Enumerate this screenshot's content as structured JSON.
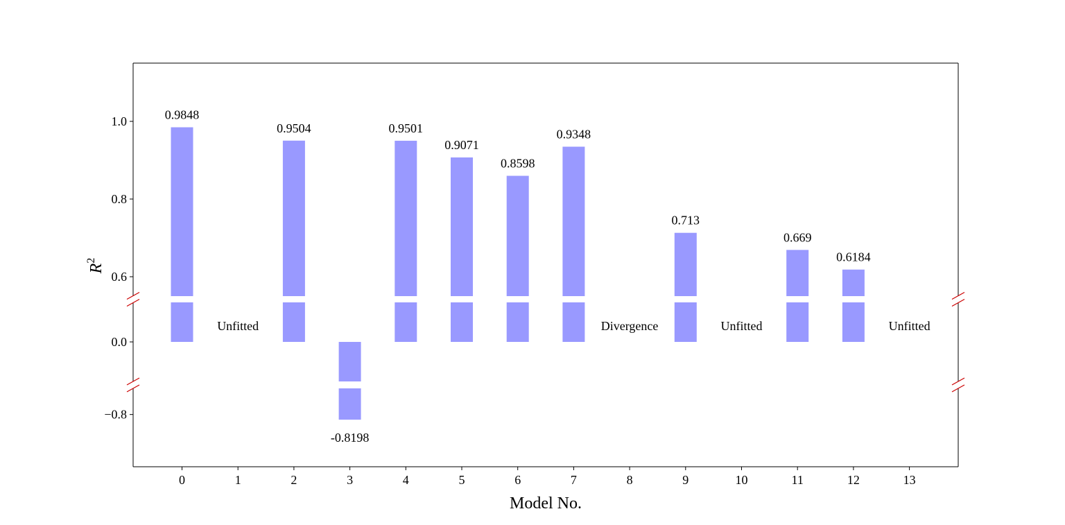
{
  "chart_data": {
    "type": "bar",
    "title": "",
    "xlabel": "Model No.",
    "ylabel": "R",
    "ylabel_superscript": "2",
    "categories": [
      "0",
      "1",
      "2",
      "3",
      "4",
      "5",
      "6",
      "7",
      "8",
      "9",
      "10",
      "11",
      "12",
      "13"
    ],
    "values": [
      0.9848,
      null,
      0.9504,
      -0.8198,
      0.9501,
      0.9071,
      0.8598,
      0.9348,
      null,
      0.713,
      null,
      0.669,
      0.6184,
      null
    ],
    "value_labels": [
      "0.9848",
      "",
      "0.9504",
      "-0.8198",
      "0.9501",
      "0.9071",
      "0.8598",
      "0.9348",
      "",
      "0.713",
      "",
      "0.669",
      "0.6184",
      ""
    ],
    "annotations": [
      {
        "category": "1",
        "text": "Unfitted"
      },
      {
        "category": "8",
        "text": "Divergence"
      },
      {
        "category": "10",
        "text": "Unfitted"
      },
      {
        "category": "13",
        "text": "Unfitted"
      }
    ],
    "broken_axis": true,
    "segments": [
      {
        "ylim": [
          0.55,
          1.15
        ],
        "ticks": [
          0.6,
          0.8,
          1.0
        ],
        "tick_labels": [
          "0.6",
          "0.8",
          "1.0"
        ]
      },
      {
        "ylim": [
          -0.1,
          0.1
        ],
        "ticks": [
          0.0
        ],
        "tick_labels": [
          "0.0"
        ]
      },
      {
        "ylim": [
          -1.0,
          -0.7
        ],
        "ticks": [
          -0.8
        ],
        "tick_labels": [
          "−0.8"
        ]
      }
    ],
    "bar_color": "#9999ff",
    "break_mark_color": "#cc0000",
    "grid": false,
    "legend": "none"
  }
}
